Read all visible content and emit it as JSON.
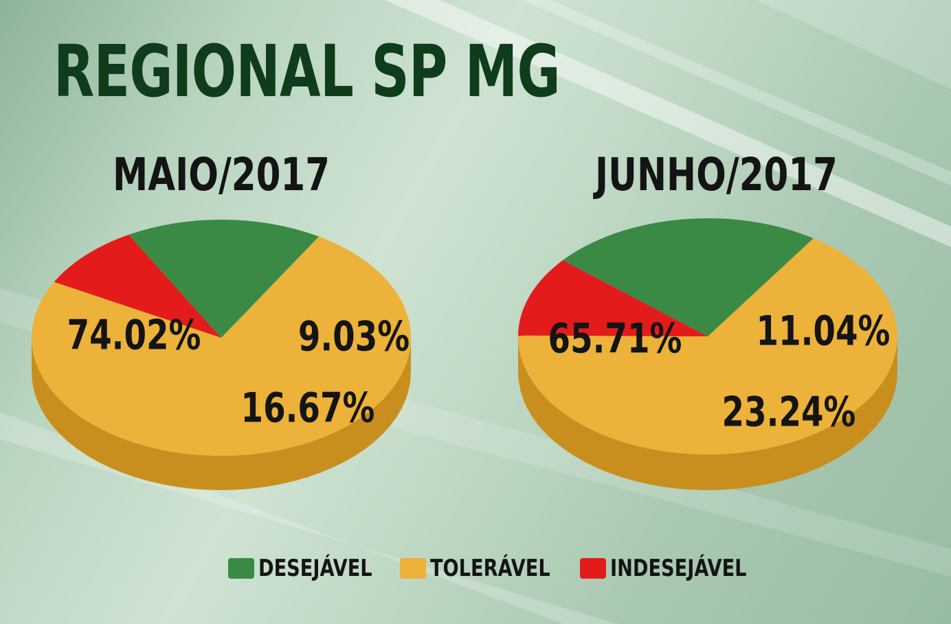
{
  "title": "REGIONAL SP MG",
  "colors": {
    "desejavel": "#3a8a45",
    "desejavel_dark": "#24672f",
    "toleravel": "#ecb23a",
    "toleravel_dark": "#c98f1e",
    "indesejavel": "#e41b1b",
    "indesejavel_dark": "#a81010"
  },
  "legend": [
    {
      "label": "DESEJÁVEL",
      "color": "#3a8a45"
    },
    {
      "label": "TOLERÁVEL",
      "color": "#ecb23a"
    },
    {
      "label": "INDESEJÁVEL",
      "color": "#e41b1b"
    }
  ],
  "chart_data": [
    {
      "type": "pie",
      "title": "MAIO/2017",
      "slices": [
        {
          "category": "TOLERÁVEL",
          "value": 74.02,
          "label": "74.02%"
        },
        {
          "category": "INDESEJÁVEL",
          "value": 9.03,
          "label": "9.03%"
        },
        {
          "category": "DESEJÁVEL",
          "value": 16.67,
          "label": "16.67%"
        }
      ]
    },
    {
      "type": "pie",
      "title": "JUNHO/2017",
      "slices": [
        {
          "category": "TOLERÁVEL",
          "value": 65.71,
          "label": "65.71%"
        },
        {
          "category": "INDESEJÁVEL",
          "value": 11.04,
          "label": "11.04%"
        },
        {
          "category": "DESEJÁVEL",
          "value": 23.24,
          "label": "23.24%"
        }
      ]
    }
  ]
}
